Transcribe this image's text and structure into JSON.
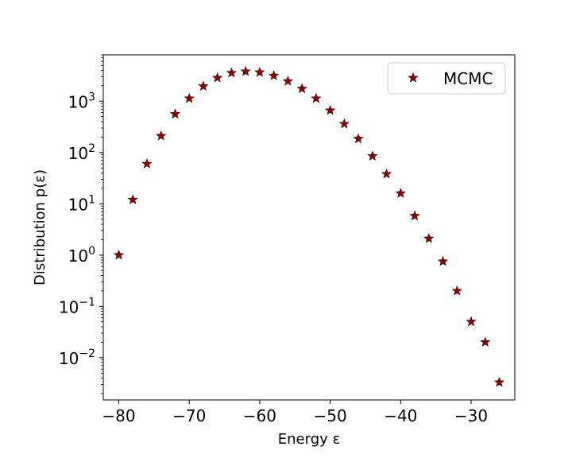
{
  "chart_data": {
    "type": "scatter",
    "title": "",
    "xlabel": "Energy ε",
    "ylabel": "Distribution p(ε)",
    "x_scale": "linear",
    "y_scale": "log",
    "xlim": [
      -82.2,
      -23.8
    ],
    "ylim": [
      0.0015,
      8000
    ],
    "x_ticks": [
      -80,
      -70,
      -60,
      -50,
      -40,
      -30
    ],
    "x_tick_labels": [
      "−80",
      "−70",
      "−60",
      "−50",
      "−40",
      "−30"
    ],
    "y_ticks": [
      0.01,
      0.1,
      1,
      10,
      100,
      1000
    ],
    "y_tick_labels": [
      {
        "base": "10",
        "exp": "−2"
      },
      {
        "base": "10",
        "exp": "−1"
      },
      {
        "base": "10",
        "exp": "0"
      },
      {
        "base": "10",
        "exp": "1"
      },
      {
        "base": "10",
        "exp": "2"
      },
      {
        "base": "10",
        "exp": "3"
      }
    ],
    "grid": false,
    "legend_position": "top-right",
    "series": [
      {
        "name": "MCMC",
        "marker": "star",
        "color": "#8b0000",
        "points": [
          {
            "x": -80,
            "y": 1.0
          },
          {
            "x": -78,
            "y": 12
          },
          {
            "x": -76,
            "y": 60
          },
          {
            "x": -74,
            "y": 210
          },
          {
            "x": -72,
            "y": 560
          },
          {
            "x": -70,
            "y": 1130
          },
          {
            "x": -68,
            "y": 1950
          },
          {
            "x": -66,
            "y": 2850
          },
          {
            "x": -64,
            "y": 3550
          },
          {
            "x": -62,
            "y": 3800
          },
          {
            "x": -60,
            "y": 3650
          },
          {
            "x": -58,
            "y": 3150
          },
          {
            "x": -56,
            "y": 2450
          },
          {
            "x": -54,
            "y": 1750
          },
          {
            "x": -52,
            "y": 1130
          },
          {
            "x": -50,
            "y": 660
          },
          {
            "x": -48,
            "y": 360
          },
          {
            "x": -46,
            "y": 185
          },
          {
            "x": -44,
            "y": 85
          },
          {
            "x": -42,
            "y": 38
          },
          {
            "x": -40,
            "y": 16
          },
          {
            "x": -38,
            "y": 5.8
          },
          {
            "x": -36,
            "y": 2.1
          },
          {
            "x": -34,
            "y": 0.75
          },
          {
            "x": -32,
            "y": 0.2
          },
          {
            "x": -30,
            "y": 0.05
          },
          {
            "x": -28,
            "y": 0.02
          },
          {
            "x": -26,
            "y": 0.0033
          }
        ]
      }
    ]
  }
}
